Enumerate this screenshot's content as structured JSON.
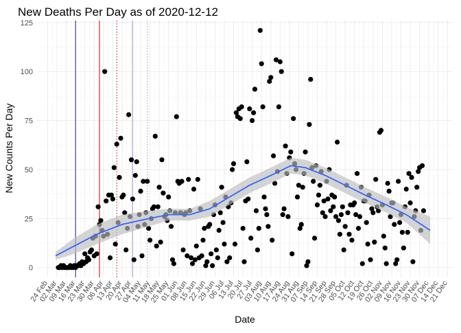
{
  "chart_data": {
    "type": "scatter",
    "title": "New Deaths Per Day as of 2020-12-12",
    "xlabel": "Date",
    "ylabel": "New Counts Per Day",
    "ylim": [
      -5,
      126
    ],
    "y_ticks": [
      0,
      25,
      50,
      75,
      100,
      125
    ],
    "x_ticks": [
      "24 Feb",
      "02 Mar",
      "09 Mar",
      "16 Mar",
      "23 Mar",
      "30 Mar",
      "06 Apr",
      "13 Apr",
      "20 Apr",
      "27 Apr",
      "04 May",
      "11 May",
      "18 May",
      "25 May",
      "01 Jun",
      "08 Jun",
      "15 Jun",
      "22 Jun",
      "29 Jun",
      "06 Jul",
      "13 Jul",
      "20 Jul",
      "27 Jul",
      "03 Aug",
      "10 Aug",
      "17 Aug",
      "24 Aug",
      "31 Aug",
      "07 Sep",
      "14 Sep",
      "21 Sep",
      "28 Sep",
      "05 Oct",
      "12 Oct",
      "19 Oct",
      "26 Oct",
      "02 Nov",
      "09 Nov",
      "16 Nov",
      "23 Nov",
      "30 Nov",
      "07 Dec",
      "14 Dec",
      "21 Dec"
    ],
    "grid": true,
    "legend": "none",
    "colors": {
      "points": "#000000",
      "smooth_line": "#3366ff",
      "smooth_band": "#bdbdbd",
      "vline_navy": "#1a1a8c",
      "vline_red": "#cc0000",
      "vline_red_dotted": "#cc0000",
      "vline_purple_dotted": "#b38fd9",
      "vline_grey_dotted": "#999999"
    },
    "vlines": [
      {
        "x": "2020-03-16",
        "color": "vline_navy",
        "style": "solid"
      },
      {
        "x": "2020-04-03",
        "color": "vline_red",
        "style": "solid"
      },
      {
        "x": "2020-04-16",
        "color": "vline_red_dotted",
        "style": "dotted"
      },
      {
        "x": "2020-04-28",
        "color": "vline_purple_dotted",
        "style": "solid"
      },
      {
        "x": "2020-05-09",
        "color": "vline_grey_dotted",
        "style": "dotted"
      }
    ],
    "smooth": {
      "x": [
        "2020-03-01",
        "2020-03-15",
        "2020-04-01",
        "2020-04-20",
        "2020-05-10",
        "2020-05-25",
        "2020-06-10",
        "2020-06-25",
        "2020-07-10",
        "2020-07-25",
        "2020-08-10",
        "2020-08-25",
        "2020-09-05",
        "2020-09-20",
        "2020-10-05",
        "2020-10-20",
        "2020-11-05",
        "2020-11-20",
        "2020-12-08"
      ],
      "y": [
        6,
        11,
        17,
        22,
        25,
        27,
        27,
        30,
        36,
        42,
        47,
        52,
        51,
        47,
        42,
        37,
        32,
        27,
        19
      ],
      "band": [
        2,
        4,
        5,
        5,
        4,
        3,
        3,
        4,
        4,
        4,
        4,
        4,
        4,
        4,
        4,
        4,
        4,
        4,
        7
      ]
    },
    "points": [
      [
        "2020-03-03",
        0
      ],
      [
        "2020-03-04",
        0
      ],
      [
        "2020-03-05",
        1
      ],
      [
        "2020-03-06",
        0
      ],
      [
        "2020-03-07",
        1
      ],
      [
        "2020-03-08",
        0
      ],
      [
        "2020-03-09",
        0
      ],
      [
        "2020-03-10",
        0
      ],
      [
        "2020-03-11",
        0
      ],
      [
        "2020-03-12",
        1
      ],
      [
        "2020-03-13",
        0
      ],
      [
        "2020-03-14",
        0
      ],
      [
        "2020-03-15",
        1
      ],
      [
        "2020-03-16",
        0
      ],
      [
        "2020-03-17",
        1
      ],
      [
        "2020-03-18",
        1
      ],
      [
        "2020-03-19",
        2
      ],
      [
        "2020-03-20",
        1
      ],
      [
        "2020-03-21",
        3
      ],
      [
        "2020-03-22",
        2
      ],
      [
        "2020-03-23",
        7
      ],
      [
        "2020-03-24",
        3
      ],
      [
        "2020-03-25",
        5
      ],
      [
        "2020-03-26",
        4
      ],
      [
        "2020-03-27",
        8
      ],
      [
        "2020-03-28",
        9
      ],
      [
        "2020-03-29",
        15
      ],
      [
        "2020-03-30",
        6
      ],
      [
        "2020-03-31",
        16
      ],
      [
        "2020-04-01",
        7
      ],
      [
        "2020-04-02",
        31
      ],
      [
        "2020-04-03",
        22
      ],
      [
        "2020-04-04",
        24
      ],
      [
        "2020-04-05",
        19
      ],
      [
        "2020-04-06",
        16
      ],
      [
        "2020-04-07",
        100
      ],
      [
        "2020-04-08",
        34
      ],
      [
        "2020-04-09",
        17
      ],
      [
        "2020-04-10",
        37
      ],
      [
        "2020-04-11",
        5
      ],
      [
        "2020-04-12",
        37
      ],
      [
        "2020-04-13",
        35
      ],
      [
        "2020-04-14",
        51
      ],
      [
        "2020-04-15",
        12
      ],
      [
        "2020-04-16",
        63
      ],
      [
        "2020-04-17",
        23
      ],
      [
        "2020-04-18",
        46
      ],
      [
        "2020-04-19",
        66
      ],
      [
        "2020-04-20",
        36
      ],
      [
        "2020-04-21",
        37
      ],
      [
        "2020-04-22",
        28
      ],
      [
        "2020-04-23",
        9
      ],
      [
        "2020-04-24",
        20
      ],
      [
        "2020-04-25",
        78
      ],
      [
        "2020-04-26",
        26
      ],
      [
        "2020-04-27",
        55
      ],
      [
        "2020-04-28",
        35
      ],
      [
        "2020-04-29",
        4
      ],
      [
        "2020-04-30",
        47
      ],
      [
        "2020-05-01",
        54
      ],
      [
        "2020-05-02",
        21
      ],
      [
        "2020-05-03",
        27
      ],
      [
        "2020-05-04",
        39
      ],
      [
        "2020-05-05",
        6
      ],
      [
        "2020-05-06",
        44
      ],
      [
        "2020-05-07",
        22
      ],
      [
        "2020-05-08",
        28
      ],
      [
        "2020-05-09",
        44
      ],
      [
        "2020-05-10",
        20
      ],
      [
        "2020-05-11",
        14
      ],
      [
        "2020-05-12",
        25
      ],
      [
        "2020-05-13",
        30
      ],
      [
        "2020-05-14",
        31
      ],
      [
        "2020-05-15",
        67
      ],
      [
        "2020-05-16",
        11
      ],
      [
        "2020-05-17",
        31
      ],
      [
        "2020-05-18",
        41
      ],
      [
        "2020-05-19",
        13
      ],
      [
        "2020-05-20",
        55
      ],
      [
        "2020-05-21",
        38
      ],
      [
        "2020-05-22",
        26
      ],
      [
        "2020-05-23",
        27
      ],
      [
        "2020-05-24",
        24
      ],
      [
        "2020-05-25",
        36
      ],
      [
        "2020-05-26",
        29
      ],
      [
        "2020-05-27",
        21
      ],
      [
        "2020-05-28",
        4
      ],
      [
        "2020-05-29",
        2
      ],
      [
        "2020-05-30",
        28
      ],
      [
        "2020-05-31",
        77
      ],
      [
        "2020-06-01",
        44
      ],
      [
        "2020-06-02",
        43
      ],
      [
        "2020-06-03",
        28
      ],
      [
        "2020-06-04",
        44
      ],
      [
        "2020-06-05",
        9
      ],
      [
        "2020-06-06",
        27
      ],
      [
        "2020-06-07",
        28
      ],
      [
        "2020-06-08",
        6
      ],
      [
        "2020-06-09",
        45
      ],
      [
        "2020-06-10",
        29
      ],
      [
        "2020-06-11",
        5
      ],
      [
        "2020-06-12",
        2
      ],
      [
        "2020-06-13",
        40
      ],
      [
        "2020-06-14",
        4
      ],
      [
        "2020-06-15",
        11
      ],
      [
        "2020-06-16",
        45
      ],
      [
        "2020-06-17",
        5
      ],
      [
        "2020-06-18",
        30
      ],
      [
        "2020-06-19",
        6
      ],
      [
        "2020-06-20",
        14
      ],
      [
        "2020-06-21",
        20
      ],
      [
        "2020-06-22",
        1
      ],
      [
        "2020-06-23",
        3
      ],
      [
        "2020-06-24",
        21
      ],
      [
        "2020-06-25",
        22
      ],
      [
        "2020-06-26",
        7
      ],
      [
        "2020-06-27",
        1
      ],
      [
        "2020-06-28",
        27
      ],
      [
        "2020-06-29",
        32
      ],
      [
        "2020-06-30",
        9
      ],
      [
        "2020-07-01",
        5
      ],
      [
        "2020-07-02",
        19
      ],
      [
        "2020-07-03",
        28
      ],
      [
        "2020-07-04",
        41
      ],
      [
        "2020-07-05",
        23
      ],
      [
        "2020-07-06",
        12
      ],
      [
        "2020-07-07",
        36
      ],
      [
        "2020-07-08",
        3
      ],
      [
        "2020-07-09",
        31
      ],
      [
        "2020-07-10",
        5
      ],
      [
        "2020-07-11",
        33
      ],
      [
        "2020-07-12",
        50
      ],
      [
        "2020-07-13",
        53
      ],
      [
        "2020-07-14",
        12
      ],
      [
        "2020-07-15",
        79
      ],
      [
        "2020-07-16",
        77
      ],
      [
        "2020-07-17",
        81
      ],
      [
        "2020-07-18",
        76
      ],
      [
        "2020-07-19",
        82
      ],
      [
        "2020-07-20",
        20
      ],
      [
        "2020-07-21",
        3
      ],
      [
        "2020-07-22",
        34
      ],
      [
        "2020-07-23",
        54
      ],
      [
        "2020-07-24",
        35
      ],
      [
        "2020-07-25",
        81
      ],
      [
        "2020-07-26",
        15
      ],
      [
        "2020-07-27",
        75
      ],
      [
        "2020-07-28",
        79
      ],
      [
        "2020-07-29",
        91
      ],
      [
        "2020-07-30",
        29
      ],
      [
        "2020-07-31",
        9
      ],
      [
        "2020-08-01",
        20
      ],
      [
        "2020-08-02",
        121
      ],
      [
        "2020-08-03",
        104
      ],
      [
        "2020-08-04",
        82
      ],
      [
        "2020-08-05",
        36
      ],
      [
        "2020-08-06",
        30
      ],
      [
        "2020-08-07",
        27
      ],
      [
        "2020-08-08",
        21
      ],
      [
        "2020-08-09",
        95
      ],
      [
        "2020-08-10",
        97
      ],
      [
        "2020-08-11",
        14
      ],
      [
        "2020-08-12",
        57
      ],
      [
        "2020-08-13",
        43
      ],
      [
        "2020-08-14",
        106
      ],
      [
        "2020-08-15",
        49
      ],
      [
        "2020-08-16",
        82
      ],
      [
        "2020-08-17",
        105
      ],
      [
        "2020-08-18",
        100
      ],
      [
        "2020-08-19",
        27
      ],
      [
        "2020-08-20",
        30
      ],
      [
        "2020-08-21",
        62
      ],
      [
        "2020-08-22",
        48
      ],
      [
        "2020-08-23",
        26
      ],
      [
        "2020-08-24",
        56
      ],
      [
        "2020-08-25",
        59
      ],
      [
        "2020-08-26",
        7
      ],
      [
        "2020-08-27",
        76
      ],
      [
        "2020-08-28",
        53
      ],
      [
        "2020-08-29",
        50
      ],
      [
        "2020-08-30",
        36
      ],
      [
        "2020-08-31",
        42
      ],
      [
        "2020-09-01",
        20
      ],
      [
        "2020-09-02",
        22
      ],
      [
        "2020-09-03",
        41
      ],
      [
        "2020-09-04",
        48
      ],
      [
        "2020-09-05",
        59
      ],
      [
        "2020-09-06",
        1
      ],
      [
        "2020-09-07",
        3
      ],
      [
        "2020-09-08",
        73
      ],
      [
        "2020-09-09",
        96
      ],
      [
        "2020-09-10",
        51
      ],
      [
        "2020-09-11",
        44
      ],
      [
        "2020-09-12",
        15
      ],
      [
        "2020-09-13",
        52
      ],
      [
        "2020-09-14",
        32
      ],
      [
        "2020-09-15",
        37
      ],
      [
        "2020-09-16",
        42
      ],
      [
        "2020-09-17",
        49
      ],
      [
        "2020-09-18",
        28
      ],
      [
        "2020-09-19",
        34
      ],
      [
        "2020-09-20",
        26
      ],
      [
        "2020-09-21",
        44
      ],
      [
        "2020-09-22",
        35
      ],
      [
        "2020-09-23",
        50
      ],
      [
        "2020-09-24",
        29
      ],
      [
        "2020-09-25",
        37
      ],
      [
        "2020-09-26",
        31
      ],
      [
        "2020-09-27",
        36
      ],
      [
        "2020-09-28",
        26
      ],
      [
        "2020-09-29",
        64
      ],
      [
        "2020-09-30",
        24
      ],
      [
        "2020-10-01",
        17
      ],
      [
        "2020-10-02",
        27
      ],
      [
        "2020-10-03",
        31
      ],
      [
        "2020-10-04",
        9
      ],
      [
        "2020-10-05",
        21
      ],
      [
        "2020-10-06",
        42
      ],
      [
        "2020-10-07",
        28
      ],
      [
        "2020-10-08",
        17
      ],
      [
        "2020-10-09",
        32
      ],
      [
        "2020-10-10",
        14
      ],
      [
        "2020-10-11",
        32
      ],
      [
        "2020-10-12",
        33
      ],
      [
        "2020-10-13",
        27
      ],
      [
        "2020-10-14",
        48
      ],
      [
        "2020-10-15",
        20
      ],
      [
        "2020-10-16",
        26
      ],
      [
        "2020-10-17",
        41
      ],
      [
        "2020-10-18",
        2
      ],
      [
        "2020-10-19",
        34
      ],
      [
        "2020-10-20",
        34
      ],
      [
        "2020-10-21",
        23
      ],
      [
        "2020-10-22",
        12
      ],
      [
        "2020-10-23",
        37
      ],
      [
        "2020-10-24",
        4
      ],
      [
        "2020-10-25",
        30
      ],
      [
        "2020-10-26",
        28
      ],
      [
        "2020-10-27",
        13
      ],
      [
        "2020-10-28",
        45
      ],
      [
        "2020-10-29",
        31
      ],
      [
        "2020-10-30",
        29
      ],
      [
        "2020-10-31",
        69
      ],
      [
        "2020-11-01",
        70
      ],
      [
        "2020-11-02",
        32
      ],
      [
        "2020-11-03",
        16
      ],
      [
        "2020-11-04",
        10
      ],
      [
        "2020-11-05",
        2
      ],
      [
        "2020-11-06",
        43
      ],
      [
        "2020-11-07",
        39
      ],
      [
        "2020-11-08",
        26
      ],
      [
        "2020-11-09",
        33
      ],
      [
        "2020-11-10",
        33
      ],
      [
        "2020-11-11",
        22
      ],
      [
        "2020-11-12",
        2
      ],
      [
        "2020-11-13",
        4
      ],
      [
        "2020-11-14",
        44
      ],
      [
        "2020-11-15",
        23
      ],
      [
        "2020-11-16",
        27
      ],
      [
        "2020-11-17",
        18
      ],
      [
        "2020-11-18",
        10
      ],
      [
        "2020-11-19",
        31
      ],
      [
        "2020-11-20",
        40
      ],
      [
        "2020-11-21",
        18
      ],
      [
        "2020-11-22",
        48
      ],
      [
        "2020-11-23",
        33
      ],
      [
        "2020-11-24",
        46
      ],
      [
        "2020-11-25",
        3
      ],
      [
        "2020-11-26",
        26
      ],
      [
        "2020-11-27",
        29
      ],
      [
        "2020-11-28",
        41
      ],
      [
        "2020-11-29",
        49
      ],
      [
        "2020-11-30",
        51
      ],
      [
        "2020-12-01",
        19
      ],
      [
        "2020-12-02",
        52
      ],
      [
        "2020-12-03",
        29
      ]
    ]
  }
}
